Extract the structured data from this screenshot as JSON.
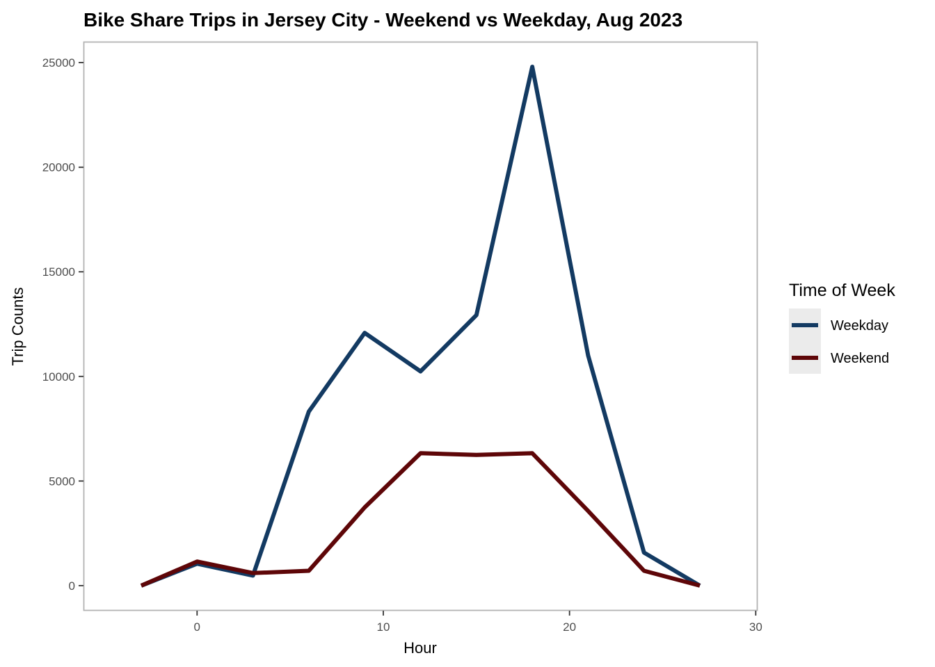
{
  "chart_data": {
    "type": "line",
    "title": "Bike Share Trips in Jersey City - Weekend vs Weekday, Aug 2023",
    "xlabel": "Hour",
    "ylabel": "Trip Counts",
    "xlim": [
      -6.1,
      30.1
    ],
    "ylim": [
      -1200,
      26000
    ],
    "x_ticks": [
      0,
      10,
      20,
      30
    ],
    "y_ticks": [
      0,
      5000,
      10000,
      15000,
      20000,
      25000
    ],
    "grid": false,
    "legend": {
      "title": "Time of Week",
      "position": "right"
    },
    "x": [
      -3,
      0,
      3,
      6,
      9,
      12,
      15,
      18,
      21,
      24,
      27
    ],
    "series": [
      {
        "name": "Weekday",
        "color": "#133a62",
        "values": [
          0,
          1050,
          480,
          8320,
          12080,
          10240,
          12930,
          24800,
          11000,
          1580,
          0
        ]
      },
      {
        "name": "Weekend",
        "color": "#5e0608",
        "values": [
          0,
          1150,
          600,
          710,
          3740,
          6330,
          6250,
          6330,
          3570,
          710,
          0
        ]
      }
    ]
  }
}
